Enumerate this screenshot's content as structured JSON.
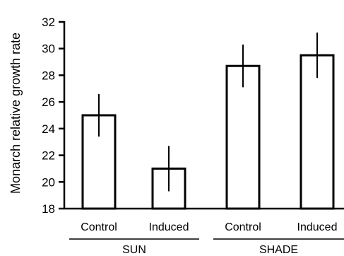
{
  "chart_data": {
    "type": "bar",
    "ylabel": "Monarch relative growth rate",
    "ylim": [
      18,
      32
    ],
    "yticks": [
      18,
      20,
      22,
      24,
      26,
      28,
      30,
      32
    ],
    "categories": [
      "Control",
      "Induced",
      "Control",
      "Induced"
    ],
    "groups": [
      {
        "label": "SUN",
        "categories": [
          0,
          1
        ]
      },
      {
        "label": "SHADE",
        "categories": [
          2,
          3
        ]
      }
    ],
    "values": [
      25.0,
      21.0,
      28.7,
      29.5
    ],
    "error": [
      1.6,
      1.7,
      1.6,
      1.7
    ],
    "grid": false,
    "legend": "none"
  }
}
